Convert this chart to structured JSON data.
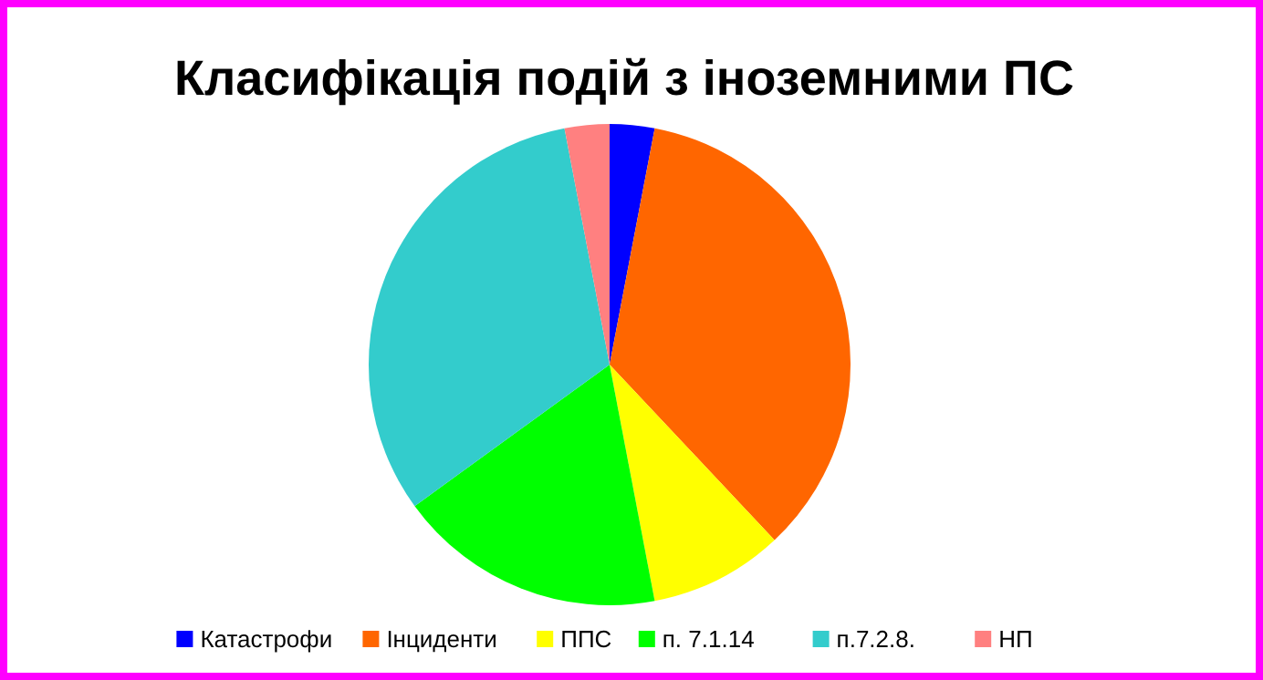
{
  "chart_data": {
    "type": "pie",
    "title": "Класифікація подій з іноземними ПС",
    "categories": [
      "Катастрофи",
      "Інциденти",
      "ППС",
      "п. 7.1.14",
      "п.7.2.8.",
      "НП"
    ],
    "values": [
      3,
      35,
      9,
      18,
      32,
      3
    ],
    "colors": [
      "#0000ff",
      "#ff6600",
      "#ffff00",
      "#00ff00",
      "#33cccc",
      "#ff8080"
    ],
    "legend": "bottom"
  }
}
